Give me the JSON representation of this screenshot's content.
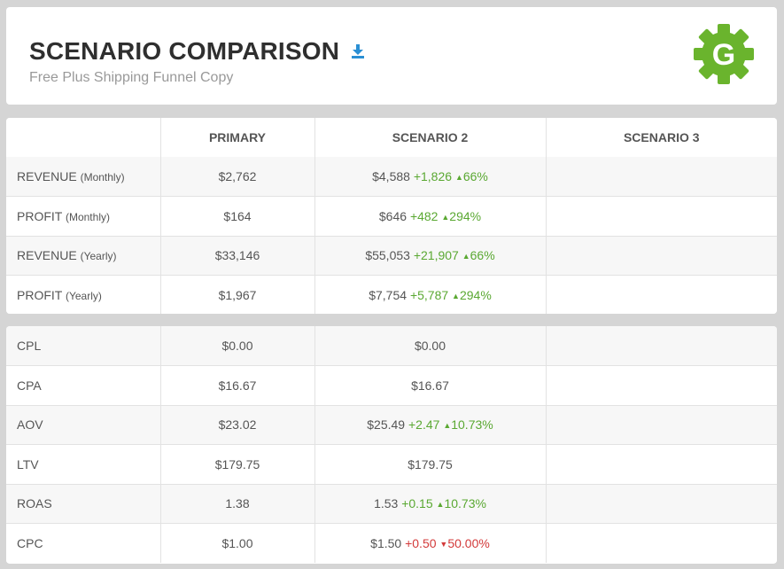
{
  "header": {
    "title": "SCENARIO COMPARISON",
    "subtitle": "Free Plus Shipping Funnel Copy",
    "download_icon": "download-icon",
    "logo_letter": "G",
    "logo_color": "#6ab42d"
  },
  "colors": {
    "positive": "#5aa832",
    "negative": "#d33a3a"
  },
  "columns": [
    "",
    "PRIMARY",
    "SCENARIO 2",
    "SCENARIO 3"
  ],
  "summary_rows": [
    {
      "label": "REVENUE",
      "unit": "(Monthly)",
      "primary": "$2,762",
      "s2": "$4,588",
      "s2_delta": "+1,826",
      "s2_pct": "66%",
      "s2_dir": "up",
      "s3": ""
    },
    {
      "label": "PROFIT",
      "unit": "(Monthly)",
      "primary": "$164",
      "s2": "$646",
      "s2_delta": "+482",
      "s2_pct": "294%",
      "s2_dir": "up",
      "s3": ""
    },
    {
      "label": "REVENUE",
      "unit": "(Yearly)",
      "primary": "$33,146",
      "s2": "$55,053",
      "s2_delta": "+21,907",
      "s2_pct": "66%",
      "s2_dir": "up",
      "s3": ""
    },
    {
      "label": "PROFIT",
      "unit": "(Yearly)",
      "primary": "$1,967",
      "s2": "$7,754",
      "s2_delta": "+5,787",
      "s2_pct": "294%",
      "s2_dir": "up",
      "s3": ""
    }
  ],
  "metric_rows": [
    {
      "label": "CPL",
      "unit": "",
      "primary": "$0.00",
      "s2": "$0.00",
      "s2_delta": "",
      "s2_pct": "",
      "s2_dir": "",
      "s3": ""
    },
    {
      "label": "CPA",
      "unit": "",
      "primary": "$16.67",
      "s2": "$16.67",
      "s2_delta": "",
      "s2_pct": "",
      "s2_dir": "",
      "s3": ""
    },
    {
      "label": "AOV",
      "unit": "",
      "primary": "$23.02",
      "s2": "$25.49",
      "s2_delta": "+2.47",
      "s2_pct": "10.73%",
      "s2_dir": "up",
      "s3": ""
    },
    {
      "label": "LTV",
      "unit": "",
      "primary": "$179.75",
      "s2": "$179.75",
      "s2_delta": "",
      "s2_pct": "",
      "s2_dir": "",
      "s3": ""
    },
    {
      "label": "ROAS",
      "unit": "",
      "primary": "1.38",
      "s2": "1.53",
      "s2_delta": "+0.15",
      "s2_pct": "10.73%",
      "s2_dir": "up",
      "s3": ""
    },
    {
      "label": "CPC",
      "unit": "",
      "primary": "$1.00",
      "s2": "$1.50",
      "s2_delta": "+0.50",
      "s2_pct": "50.00%",
      "s2_dir": "down",
      "s3": ""
    }
  ]
}
